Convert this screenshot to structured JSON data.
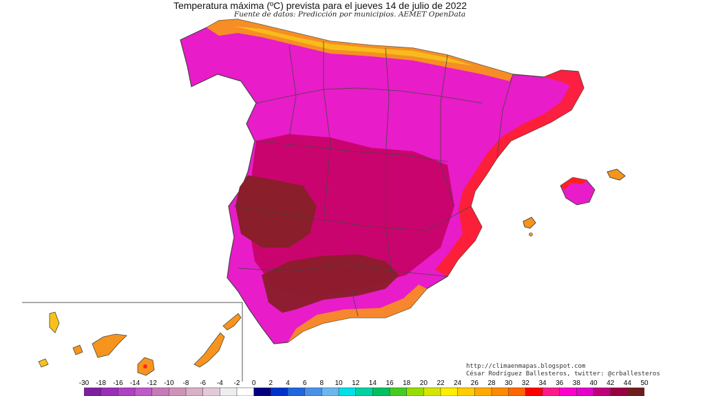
{
  "title": "Temperatura máxima (ºC) prevista para el jueves 14 de julio de 2022",
  "source": "Fuente de datos: Predicción por municipios. AEMET OpenData",
  "credits": {
    "line1": "http://climaenmapas.blogspot.com",
    "line2": "César Rodríguez Ballesteros, twitter: @crballesteros"
  },
  "legend": {
    "ticks": [
      "-30",
      "-18",
      "-16",
      "-14",
      "-12",
      "-10",
      "-8",
      "-6",
      "-4",
      "-2",
      "0",
      "2",
      "4",
      "6",
      "8",
      "10",
      "12",
      "14",
      "16",
      "18",
      "20",
      "22",
      "24",
      "26",
      "28",
      "30",
      "32",
      "34",
      "36",
      "38",
      "40",
      "42",
      "44",
      "50"
    ],
    "colors": [
      "#7f1fa0",
      "#9a2eb8",
      "#b040c4",
      "#bf5ac8",
      "#c77ab8",
      "#cf93b8",
      "#d8b0c8",
      "#e4cad8",
      "#eeeeee",
      "#ffffff",
      "#000080",
      "#0033cc",
      "#1f66e0",
      "#4a90e8",
      "#6ab7f0",
      "#00e0e8",
      "#00d2a0",
      "#00c060",
      "#44cc22",
      "#99dd00",
      "#d4e600",
      "#ffee00",
      "#ffcc00",
      "#ffaa00",
      "#ff8800",
      "#ff6600",
      "#ff0000",
      "#ff1a8c",
      "#ff00cc",
      "#e600cc",
      "#c0007a",
      "#990040",
      "#6e1c1c"
    ]
  },
  "zone_colors": {
    "coast_orange": "#f7941d",
    "coast_yellow": "#f7c11a",
    "red": "#ff2020",
    "magenta": "#e81cc8",
    "crimson": "#c4005e",
    "maroon": "#8a1e2a",
    "border": "#444444"
  }
}
